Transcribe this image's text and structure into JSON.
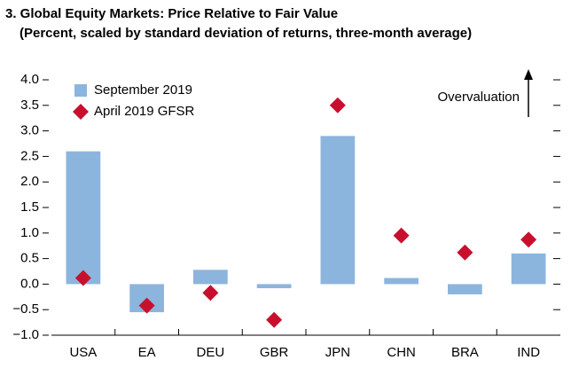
{
  "chart_data": {
    "type": "bar",
    "title": "3. Global Equity Markets: Price Relative to Fair Value",
    "subtitle": "(Percent, scaled by standard deviation of returns, three-month average)",
    "annotation": "Overvaluation",
    "categories": [
      "USA",
      "EA",
      "DEU",
      "GBR",
      "JPN",
      "CHN",
      "BRA",
      "IND"
    ],
    "series": [
      {
        "name": "September 2019",
        "type": "bar",
        "color": "#8cb5dd",
        "values": [
          2.6,
          -0.55,
          0.28,
          -0.08,
          2.9,
          0.12,
          -0.2,
          0.6
        ]
      },
      {
        "name": "April 2019 GFSR",
        "type": "scatter",
        "color": "#c8102e",
        "values": [
          0.12,
          -0.42,
          -0.17,
          -0.7,
          3.5,
          0.95,
          0.62,
          0.87
        ]
      }
    ],
    "ylim": [
      -1,
      4
    ],
    "yticks": [
      {
        "value": -1,
        "label": "−1.0"
      },
      {
        "value": -0.5,
        "label": "−0.5"
      },
      {
        "value": 0,
        "label": "0.0"
      },
      {
        "value": 0.5,
        "label": "0.5"
      },
      {
        "value": 1,
        "label": "1.0"
      },
      {
        "value": 1.5,
        "label": "1.5"
      },
      {
        "value": 2,
        "label": "2.0"
      },
      {
        "value": 2.5,
        "label": "2.5"
      },
      {
        "value": 3,
        "label": "3.0"
      },
      {
        "value": 3.5,
        "label": "3.5"
      },
      {
        "value": 4,
        "label": "4.0"
      }
    ],
    "grid": false,
    "legend": "upper left"
  }
}
